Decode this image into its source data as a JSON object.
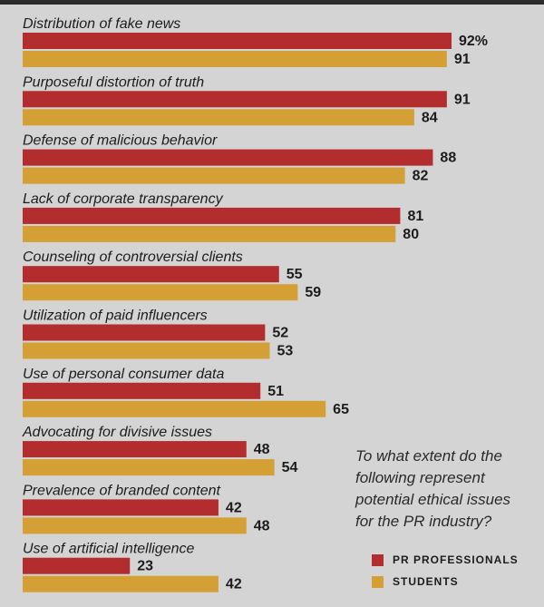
{
  "chart_data": {
    "type": "bar",
    "orientation": "horizontal",
    "title": "To what extent do the following represent potential ethical issues for the PR industry?",
    "categories": [
      "Distribution of fake news",
      "Purposeful distortion of truth",
      "Defense of malicious behavior",
      "Lack of corporate transparency",
      "Counseling of controversial clients",
      "Utilization of paid influencers",
      "Use of personal consumer data",
      "Advocating for divisive issues",
      "Prevalence of branded content",
      "Use of artificial intelligence"
    ],
    "series": [
      {
        "name": "PR PROFESSIONALS",
        "color": "#b32d2e",
        "values": [
          92,
          91,
          88,
          81,
          55,
          52,
          51,
          48,
          42,
          23
        ]
      },
      {
        "name": "STUDENTS",
        "color": "#d4a036",
        "values": [
          91,
          84,
          82,
          80,
          59,
          53,
          65,
          54,
          48,
          42
        ]
      }
    ],
    "value_suffix_first": "%",
    "xlim": [
      0,
      100
    ],
    "grid": false,
    "legend_position": "bottom-right"
  },
  "question": {
    "lines": [
      "To what extent do the",
      "following represent",
      "potential ethical issues",
      "for the PR industry?"
    ]
  },
  "legend": [
    {
      "label": "PR PROFESSIONALS",
      "color": "#b32d2e"
    },
    {
      "label": "STUDENTS",
      "color": "#d4a036"
    }
  ]
}
